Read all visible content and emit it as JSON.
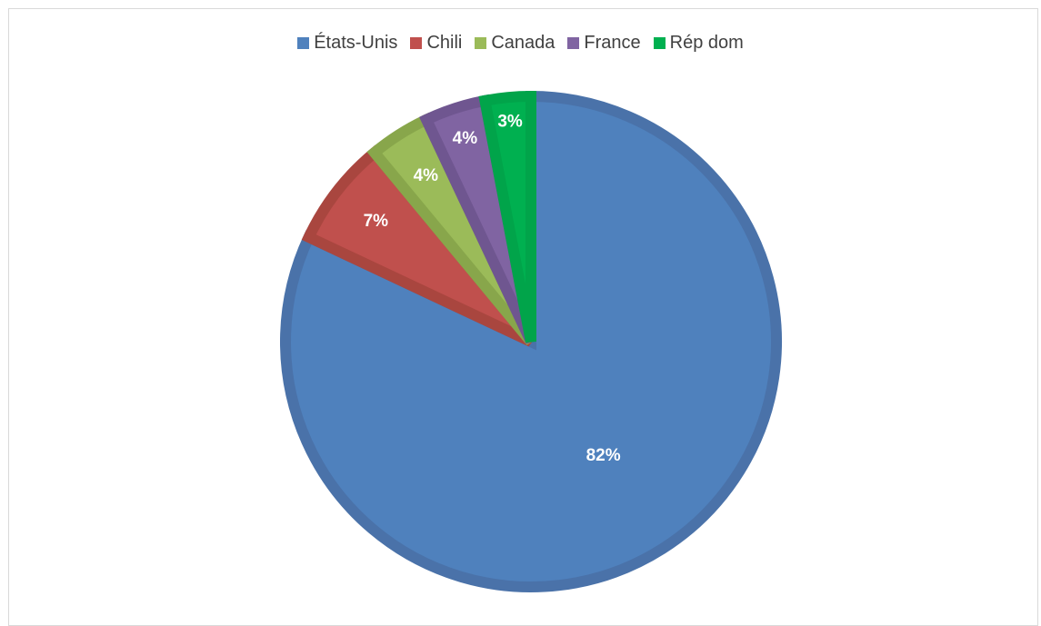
{
  "chart_data": {
    "type": "pie",
    "title": "",
    "categories": [
      "États-Unis",
      "Chili",
      "Canada",
      "France",
      "Rép dom"
    ],
    "values": [
      82,
      7,
      4,
      4,
      3
    ],
    "labels": [
      "82%",
      "7%",
      "4%",
      "4%",
      "3%"
    ],
    "colors": [
      "#4F81BD",
      "#C0504D",
      "#9BBB59",
      "#8064A2",
      "#00B050"
    ],
    "border_colors": [
      "#4A72A9",
      "#A9463F",
      "#88A64B",
      "#6F5690",
      "#01A44A"
    ],
    "legend_position": "top"
  }
}
